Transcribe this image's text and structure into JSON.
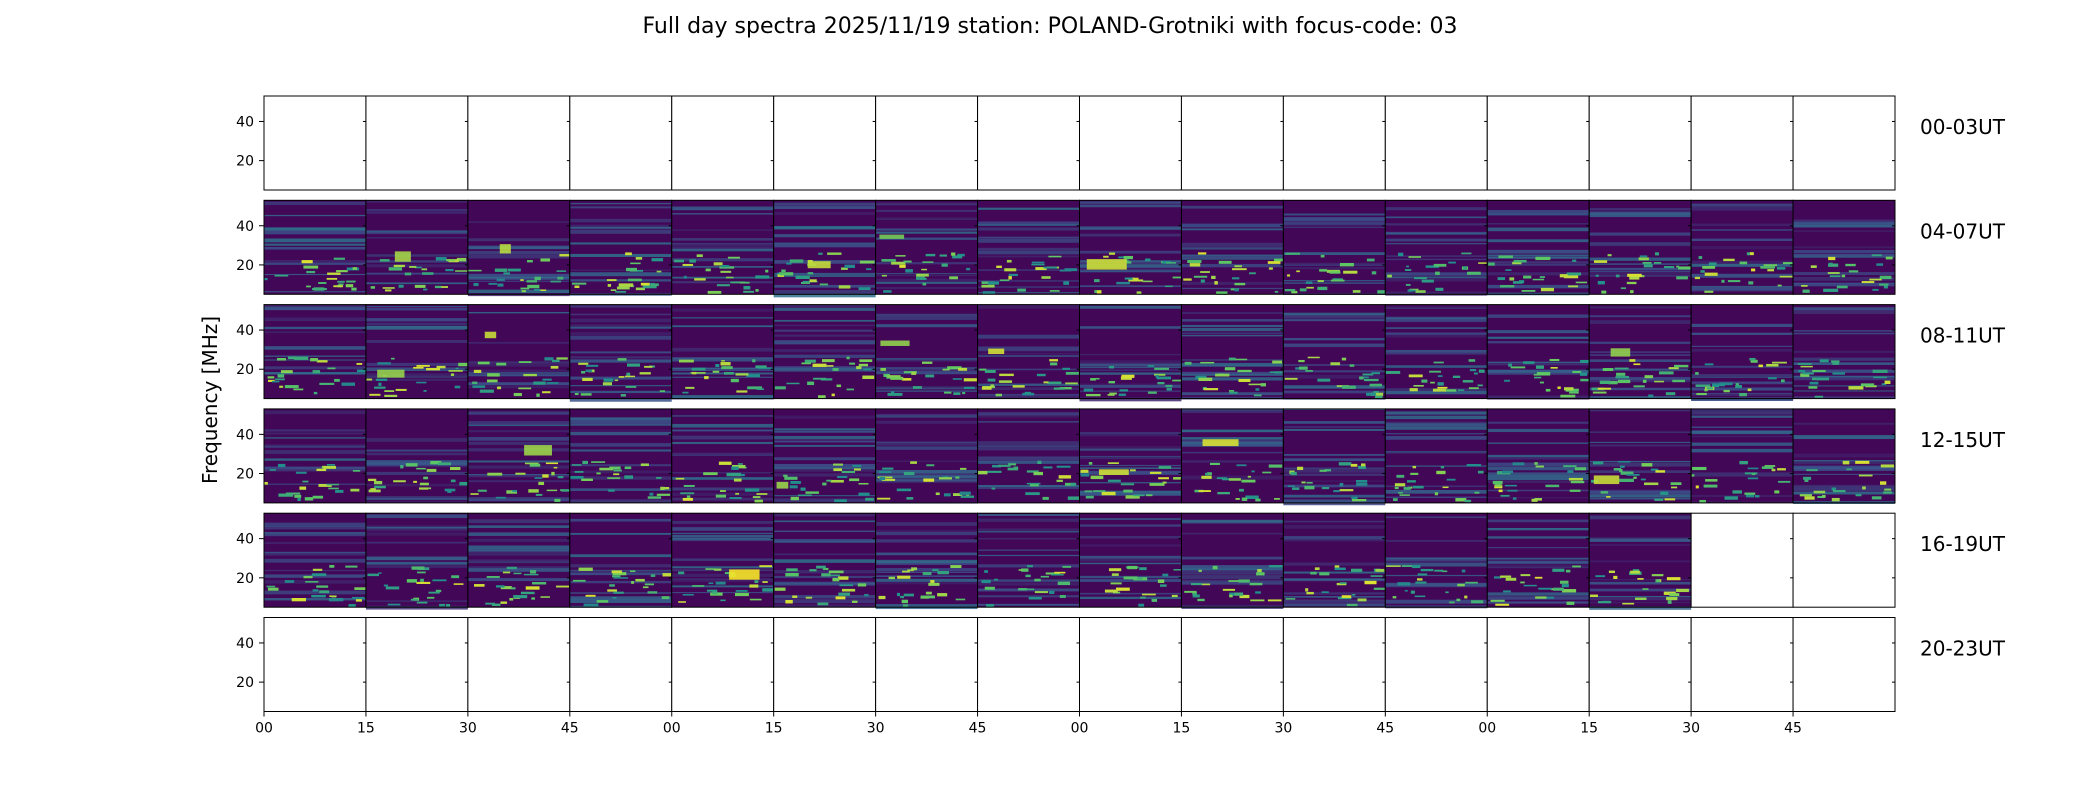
{
  "chart_data": {
    "type": "heatmap",
    "title": "Full day spectra 2025/11/19 station: POLAND-Grotniki with focus-code: 03",
    "xlabel": "",
    "ylabel": "Frequency [MHz]",
    "yticks": [
      20,
      40
    ],
    "ylim": [
      5,
      53
    ],
    "x_tick_labels": [
      "00",
      "15",
      "30",
      "45",
      "00",
      "15",
      "30",
      "45",
      "00",
      "15",
      "30",
      "45",
      "00",
      "15",
      "30",
      "45"
    ],
    "panels_per_row": 16,
    "panel_minutes": 15,
    "colormap": [
      "#440154",
      "#3b528b",
      "#21918c",
      "#5ec962",
      "#fde725"
    ],
    "rows": [
      {
        "label": "00-03UT",
        "data_panels": 0
      },
      {
        "label": "04-07UT",
        "data_panels": 16
      },
      {
        "label": "08-11UT",
        "data_panels": 16
      },
      {
        "label": "12-15UT",
        "data_panels": 16
      },
      {
        "label": "16-19UT",
        "data_panels": 14
      },
      {
        "label": "20-23UT",
        "data_panels": 0
      }
    ]
  }
}
